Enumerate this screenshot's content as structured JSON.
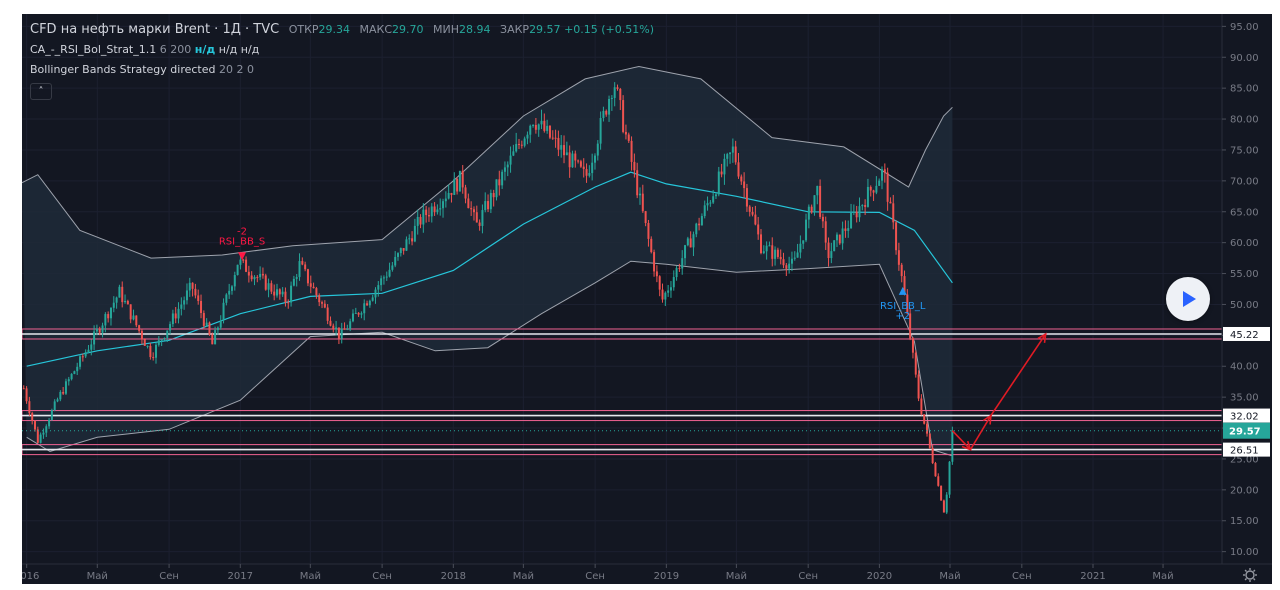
{
  "legend": {
    "symbol_title": "CFD на нефть марки Brent · 1Д · TVC",
    "open_label": "ОТКР",
    "open_value": "29.34",
    "high_label": "МАКС",
    "high_value": "29.70",
    "low_label": "МИН",
    "low_value": "28.94",
    "close_label": "ЗАКР",
    "close_value": "29.57",
    "change": "+0.15 (+0.51%)",
    "indicator1_name": "CA_-_RSI_Bol_Strat_1.1",
    "indicator1_params": "6 200",
    "indicator1_value1": "н/д",
    "indicator1_value2": "н/д",
    "indicator1_value3": "н/д",
    "indicator2_name": "Bollinger Bands Strategy directed",
    "indicator2_params": "20 2 0",
    "collapse_glyph": "˄"
  },
  "controls": {
    "play_icon": "play-icon",
    "settings_icon": "gear-icon"
  },
  "colors": {
    "background": "#131722",
    "up_candle": "#26a69a",
    "down_candle": "#ef5350",
    "basis_line": "#26c6da",
    "band_line": "#9ea3ad",
    "band_fill": "#1f2a38",
    "level_band": "#f06292",
    "forecast": "#e01b24",
    "price_tag": "#26a69a"
  },
  "chart_data": {
    "type": "line",
    "title": "CFD на нефть марки Brent · 1Д · TVC",
    "xlim": [
      "2015-12-24",
      "2021-08-10"
    ],
    "ylim": [
      8,
      97
    ],
    "y_scale": "linear",
    "grid": true,
    "y_ticks": [
      95,
      90,
      85,
      80,
      75,
      70,
      65,
      60,
      55,
      50,
      45,
      40,
      35,
      30,
      25,
      20,
      15,
      10
    ],
    "x_ticks": [
      {
        "date": "2016-01-01",
        "label": "2016"
      },
      {
        "date": "2016-05-01",
        "label": "Май"
      },
      {
        "date": "2016-09-01",
        "label": "Сен"
      },
      {
        "date": "2017-01-01",
        "label": "2017"
      },
      {
        "date": "2017-05-01",
        "label": "Май"
      },
      {
        "date": "2017-09-01",
        "label": "Сен"
      },
      {
        "date": "2018-01-01",
        "label": "2018"
      },
      {
        "date": "2018-05-01",
        "label": "Май"
      },
      {
        "date": "2018-09-01",
        "label": "Сен"
      },
      {
        "date": "2019-01-01",
        "label": "2019"
      },
      {
        "date": "2019-05-01",
        "label": "Май"
      },
      {
        "date": "2019-09-01",
        "label": "Сен"
      },
      {
        "date": "2020-01-01",
        "label": "2020"
      },
      {
        "date": "2020-05-01",
        "label": "Май"
      },
      {
        "date": "2020-09-01",
        "label": "Сен"
      },
      {
        "date": "2021-01-01",
        "label": "2021"
      },
      {
        "date": "2021-05-01",
        "label": "Май"
      }
    ],
    "price_path": [
      {
        "x": "2015-12-24",
        "y": 37.5
      },
      {
        "x": "2016-01-20",
        "y": 27.9
      },
      {
        "x": "2016-02-25",
        "y": 35.0
      },
      {
        "x": "2016-04-15",
        "y": 43.0
      },
      {
        "x": "2016-06-08",
        "y": 52.0
      },
      {
        "x": "2016-08-02",
        "y": 41.8
      },
      {
        "x": "2016-10-10",
        "y": 53.0
      },
      {
        "x": "2016-11-14",
        "y": 43.5
      },
      {
        "x": "2016-12-28",
        "y": 57.0
      },
      {
        "x": "2017-03-22",
        "y": 50.5
      },
      {
        "x": "2017-04-12",
        "y": 56.5
      },
      {
        "x": "2017-06-21",
        "y": 44.8
      },
      {
        "x": "2017-09-20",
        "y": 56.5
      },
      {
        "x": "2017-11-08",
        "y": 64.0
      },
      {
        "x": "2018-01-15",
        "y": 70.4
      },
      {
        "x": "2018-02-09",
        "y": 62.6
      },
      {
        "x": "2018-05-17",
        "y": 80.2
      },
      {
        "x": "2018-08-16",
        "y": 70.5
      },
      {
        "x": "2018-10-03",
        "y": 86.3
      },
      {
        "x": "2018-12-24",
        "y": 50.5
      },
      {
        "x": "2019-04-25",
        "y": 75.0
      },
      {
        "x": "2019-06-12",
        "y": 59.5
      },
      {
        "x": "2019-08-07",
        "y": 56.2
      },
      {
        "x": "2019-09-16",
        "y": 69.0
      },
      {
        "x": "2019-10-03",
        "y": 57.7
      },
      {
        "x": "2020-01-08",
        "y": 71.7
      },
      {
        "x": "2020-02-10",
        "y": 53.3
      },
      {
        "x": "2020-03-09",
        "y": 34.4
      },
      {
        "x": "2020-04-22",
        "y": 15.98
      },
      {
        "x": "2020-05-05",
        "y": 29.57
      }
    ],
    "series": [
      {
        "name": "",
        "role": "basis",
        "values": [
          {
            "x": "2016-01-01",
            "y": 40.0
          },
          {
            "x": "2016-05-01",
            "y": 42.5
          },
          {
            "x": "2016-09-01",
            "y": 44.2
          },
          {
            "x": "2017-01-01",
            "y": 48.5
          },
          {
            "x": "2017-05-01",
            "y": 51.3
          },
          {
            "x": "2017-09-01",
            "y": 51.8
          },
          {
            "x": "2018-01-01",
            "y": 55.5
          },
          {
            "x": "2018-05-01",
            "y": 63.0
          },
          {
            "x": "2018-09-01",
            "y": 69.0
          },
          {
            "x": "2018-11-01",
            "y": 71.4
          },
          {
            "x": "2019-01-01",
            "y": 69.5
          },
          {
            "x": "2019-05-01",
            "y": 67.5
          },
          {
            "x": "2019-09-01",
            "y": 65.0
          },
          {
            "x": "2020-01-01",
            "y": 64.9
          },
          {
            "x": "2020-03-01",
            "y": 62.0
          },
          {
            "x": "2020-05-05",
            "y": 53.5
          }
        ]
      },
      {
        "name": "",
        "role": "upper_band",
        "values": [
          {
            "x": "2015-12-24",
            "y": 69.7
          },
          {
            "x": "2016-01-20",
            "y": 71.0
          },
          {
            "x": "2016-04-01",
            "y": 62.0
          },
          {
            "x": "2016-08-01",
            "y": 57.5
          },
          {
            "x": "2016-12-01",
            "y": 58.0
          },
          {
            "x": "2017-04-01",
            "y": 59.5
          },
          {
            "x": "2017-09-01",
            "y": 60.5
          },
          {
            "x": "2018-01-01",
            "y": 70.0
          },
          {
            "x": "2018-05-01",
            "y": 80.5
          },
          {
            "x": "2018-08-15",
            "y": 86.5
          },
          {
            "x": "2018-11-15",
            "y": 88.5
          },
          {
            "x": "2019-03-01",
            "y": 86.5
          },
          {
            "x": "2019-07-01",
            "y": 77.0
          },
          {
            "x": "2019-11-01",
            "y": 75.5
          },
          {
            "x": "2020-02-20",
            "y": 69.0
          },
          {
            "x": "2020-03-20",
            "y": 75.0
          },
          {
            "x": "2020-04-20",
            "y": 80.5
          },
          {
            "x": "2020-05-05",
            "y": 81.9
          }
        ]
      },
      {
        "name": "",
        "role": "lower_band",
        "values": [
          {
            "x": "2016-01-01",
            "y": 28.5
          },
          {
            "x": "2016-02-10",
            "y": 26.2
          },
          {
            "x": "2016-05-01",
            "y": 28.5
          },
          {
            "x": "2016-09-01",
            "y": 29.8
          },
          {
            "x": "2017-01-01",
            "y": 34.5
          },
          {
            "x": "2017-05-01",
            "y": 44.8
          },
          {
            "x": "2017-09-01",
            "y": 45.5
          },
          {
            "x": "2017-12-01",
            "y": 42.5
          },
          {
            "x": "2018-03-01",
            "y": 43.0
          },
          {
            "x": "2018-06-01",
            "y": 48.5
          },
          {
            "x": "2018-09-01",
            "y": 53.5
          },
          {
            "x": "2018-11-01",
            "y": 57.0
          },
          {
            "x": "2019-01-01",
            "y": 56.5
          },
          {
            "x": "2019-05-01",
            "y": 55.2
          },
          {
            "x": "2019-09-01",
            "y": 55.8
          },
          {
            "x": "2020-01-01",
            "y": 56.5
          },
          {
            "x": "2020-03-01",
            "y": 44.0
          },
          {
            "x": "2020-04-01",
            "y": 26.5
          },
          {
            "x": "2020-05-05",
            "y": 25.5
          }
        ]
      }
    ],
    "levels": [
      {
        "value": 45.22,
        "label": "45.22"
      },
      {
        "value": 32.02,
        "label": "32.02"
      },
      {
        "value": 26.51,
        "label": "26.51"
      }
    ],
    "last_price": {
      "value": 29.57,
      "label": "29.57"
    },
    "signals": [
      {
        "x": "2017-01-04",
        "y": 56.5,
        "label": "RSI_BB_S",
        "amount": "-2",
        "side": "sell"
      },
      {
        "x": "2020-02-10",
        "y": 53.5,
        "label": "RSI_BB_L",
        "amount": "+2",
        "side": "buy"
      }
    ],
    "forecast_path": [
      {
        "x": "2020-05-05",
        "y": 29.57
      },
      {
        "x": "2020-06-05",
        "y": 26.51
      },
      {
        "x": "2020-07-10",
        "y": 32.02
      },
      {
        "x": "2020-10-12",
        "y": 45.22
      }
    ]
  }
}
